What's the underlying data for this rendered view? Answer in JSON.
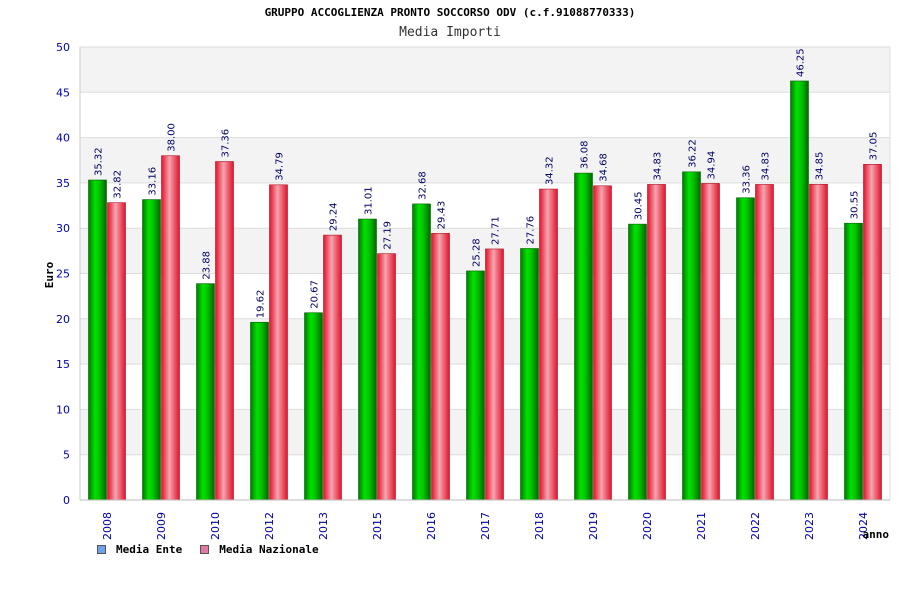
{
  "chart_data": {
    "type": "bar",
    "title": "GRUPPO ACCOGLIENZA PRONTO SOCCORSO ODV (c.f.91088770333)",
    "subtitle": "Media Importi",
    "xlabel": "anno",
    "ylabel": "Euro",
    "ylim": [
      0,
      50
    ],
    "yticks": [
      "0",
      "5",
      "10",
      "15",
      "20",
      "25",
      "30",
      "35",
      "40",
      "45",
      "50"
    ],
    "categories": [
      "2008",
      "2009",
      "2010",
      "2012",
      "2013",
      "2015",
      "2016",
      "2017",
      "2018",
      "2019",
      "2020",
      "2021",
      "2022",
      "2023",
      "2024"
    ],
    "series": [
      {
        "name": "Media Ente",
        "values": [
          35.32,
          33.16,
          23.88,
          19.62,
          20.67,
          31.01,
          32.68,
          25.28,
          27.76,
          36.08,
          30.45,
          36.22,
          33.36,
          46.25,
          30.55
        ],
        "labels": [
          "35.32",
          "33.16",
          "23.88",
          "19.62",
          "20.67",
          "31.01",
          "32.68",
          "25.28",
          "27.76",
          "36.08",
          "30.45",
          "36.22",
          "33.36",
          "46.25",
          "30.55"
        ],
        "color": "#00b800",
        "legend_color": "#6fa0e8"
      },
      {
        "name": "Media Nazionale",
        "values": [
          32.82,
          38.0,
          37.36,
          34.79,
          29.24,
          27.19,
          29.43,
          27.71,
          34.32,
          34.68,
          34.83,
          34.94,
          34.83,
          34.85,
          37.05
        ],
        "labels": [
          "32.82",
          "38.00",
          "37.36",
          "34.79",
          "29.24",
          "27.19",
          "29.43",
          "27.71",
          "34.32",
          "34.68",
          "34.83",
          "34.94",
          "34.83",
          "34.85",
          "37.05"
        ],
        "color": "#e81c2c",
        "legend_color": "#e07aa6"
      }
    ],
    "grid": true,
    "legend_position": "bottom-left"
  }
}
